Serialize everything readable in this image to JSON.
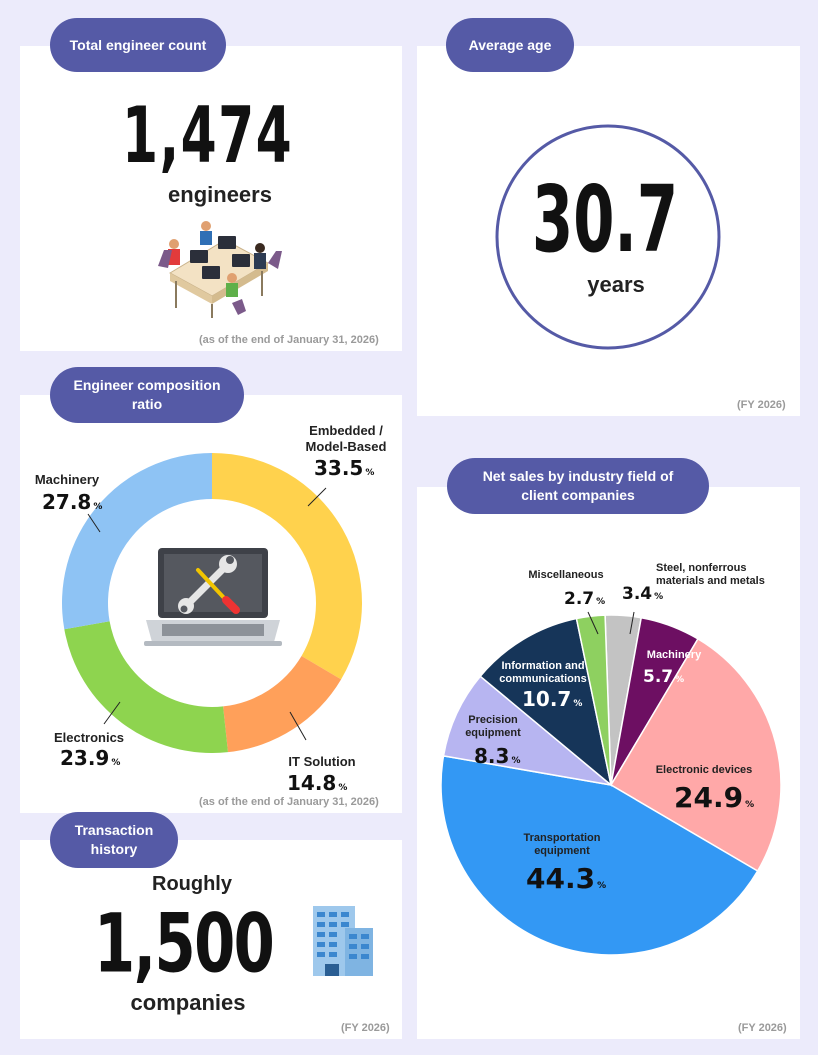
{
  "engineers": {
    "title": "Total engineer count",
    "value": "1,474",
    "unit": "engineers",
    "note": "(as of the end of January 31, 2026)"
  },
  "age": {
    "title": "Average age",
    "value": "30.7",
    "unit": "years",
    "note": "(FY 2026)"
  },
  "composition": {
    "title": "Engineer composition ratio",
    "note": "(as of the end of January 31, 2026)"
  },
  "transactions": {
    "title": "Transaction history",
    "prefix": "Roughly",
    "value": "1,500",
    "unit": "companies",
    "note": "(FY 2026)"
  },
  "sales": {
    "title": "Net sales by industry field of client companies",
    "note": "(FY 2026)"
  },
  "percent_sign": "%",
  "chart_data": [
    {
      "type": "pie",
      "variant": "donut",
      "title": "Engineer composition ratio",
      "categories": [
        "Embedded / Model-Based",
        "IT Solution",
        "Electronics",
        "Machinery"
      ],
      "values": [
        33.5,
        14.8,
        23.9,
        27.8
      ],
      "colors": [
        "#ffd24d",
        "#ffa05a",
        "#8ed44f",
        "#8ec3f4"
      ],
      "labels": [
        {
          "name": "Embedded / Model-Based",
          "value": "33.5"
        },
        {
          "name": "IT Solution",
          "value": "14.8"
        },
        {
          "name": "Electronics",
          "value": "23.9"
        },
        {
          "name": "Machinery",
          "value": "27.8"
        }
      ]
    },
    {
      "type": "pie",
      "title": "Net sales by industry field of client companies",
      "categories": [
        "Steel, nonferrous materials and metals",
        "Machinery",
        "Electronic devices",
        "Transportation equipment",
        "Precision equipment",
        "Information and communications",
        "Miscellaneous"
      ],
      "values": [
        3.4,
        5.7,
        24.9,
        44.3,
        8.3,
        10.7,
        2.7
      ],
      "colors": [
        "#c3c3c3",
        "#6d0f62",
        "#ffa8a8",
        "#3398f4",
        "#b7b5f1",
        "#163559",
        "#8ed060"
      ],
      "labels": [
        {
          "name": "Steel, nonferrous materials and metals",
          "value": "3.4"
        },
        {
          "name": "Machinery",
          "value": "5.7"
        },
        {
          "name": "Electronic devices",
          "value": "24.9"
        },
        {
          "name": "Transportation equipment",
          "value": "44.3"
        },
        {
          "name": "Precision equipment",
          "value": "8.3"
        },
        {
          "name": "Information and communications",
          "value": "10.7"
        },
        {
          "name": "Miscellaneous",
          "value": "2.7"
        }
      ]
    }
  ]
}
